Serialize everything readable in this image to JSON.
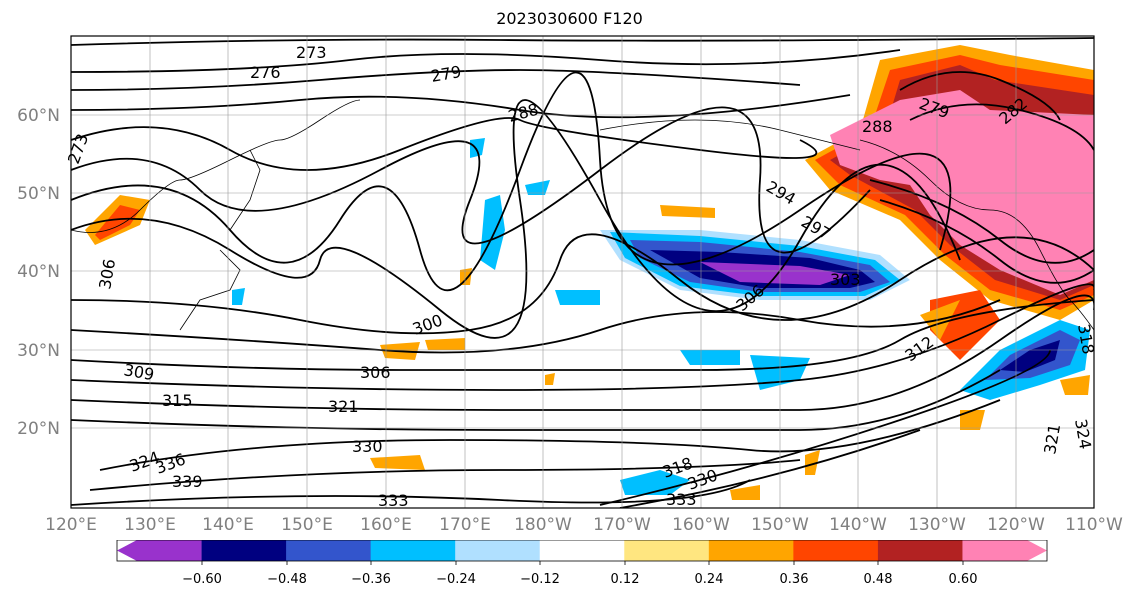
{
  "title": "2023030600 F120",
  "map": {
    "lat_labels": [
      "60°N",
      "50°N",
      "40°N",
      "30°N",
      "20°N"
    ],
    "lon_labels": [
      "120°E",
      "130°E",
      "140°E",
      "150°E",
      "160°E",
      "170°E",
      "180°W",
      "170°W",
      "160°W",
      "150°W",
      "140°W",
      "130°W",
      "120°W",
      "110°W"
    ],
    "contour_labels": [
      "273",
      "276",
      "279",
      "288",
      "273",
      "306",
      "294",
      "297",
      "303",
      "306",
      "300",
      "309",
      "306",
      "315",
      "321",
      "330",
      "324",
      "336",
      "339",
      "333",
      "312",
      "318",
      "330",
      "333",
      "321",
      "324",
      "279",
      "282",
      "288",
      "318"
    ]
  },
  "colorbar": {
    "ticks": [
      "−0.60",
      "−0.48",
      "−0.36",
      "−0.24",
      "−0.12",
      "0.12",
      "0.24",
      "0.36",
      "0.48",
      "0.60"
    ],
    "colors": [
      "#9932cc",
      "#000080",
      "#3355cc",
      "#00bfff",
      "#b0e0ff",
      "#ffffff",
      "#ffe680",
      "#ffa500",
      "#ff4500",
      "#b22222",
      "#ff82b4"
    ]
  }
}
